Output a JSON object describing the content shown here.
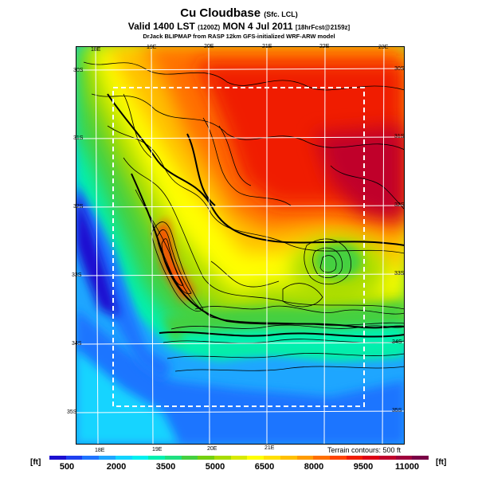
{
  "header": {
    "title": "Cu Cloudbase",
    "title_suffix": "(Sfc. LCL)",
    "valid_line": "Valid 1400 LST",
    "valid_code": "(1200Z)",
    "valid_date": "MON 4 Jul 2011",
    "forecast_tag": "[18hrFcst@2159z]",
    "credit": "DrJack BLIPMAP from RASP 12km GFS-initialized WRF-ARW model"
  },
  "map": {
    "longitude_labels_top": [
      "18E",
      "19E",
      "20E",
      "21E",
      "22E",
      "23E"
    ],
    "longitude_labels_bottom": [
      "18E",
      "19E",
      "20E",
      "21E"
    ],
    "latitude_labels_left": [
      "30S",
      "31S",
      "32S",
      "33S",
      "34S",
      "35S"
    ],
    "latitude_labels_right": [
      "30S",
      "31S",
      "32S",
      "33S",
      "34S",
      "35S"
    ],
    "terrain_note": "Terrain contours: 500 ft"
  },
  "colorbar": {
    "unit_left": "[ft]",
    "unit_right": "[ft]",
    "tick_labels": [
      "500",
      "2000",
      "3500",
      "5000",
      "6500",
      "8000",
      "9500",
      "11000"
    ],
    "colors": [
      "#1c0fd0",
      "#1e40f0",
      "#1f74ff",
      "#1ea6ff",
      "#12d4ff",
      "#00f0f0",
      "#00f0b0",
      "#1fe080",
      "#45d040",
      "#74d010",
      "#a8dc00",
      "#d8ea00",
      "#ffff00",
      "#ffe000",
      "#ffc000",
      "#ff9c00",
      "#ff7000",
      "#ff4400",
      "#f01c00",
      "#dc0014",
      "#c0002c",
      "#a0003c",
      "#7a0046"
    ]
  }
}
